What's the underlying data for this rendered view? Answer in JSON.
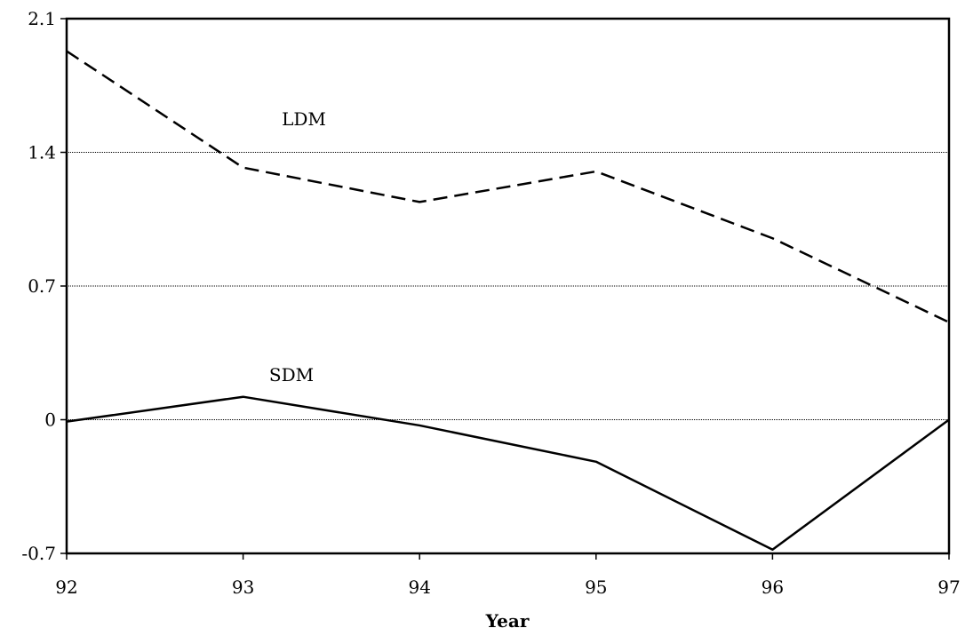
{
  "chart_data": {
    "type": "line",
    "title": "",
    "xlabel": "Year",
    "ylabel": "",
    "x": [
      "92",
      "93",
      "94",
      "95",
      "96",
      "97"
    ],
    "ylim": [
      -0.7,
      2.1
    ],
    "yticks": [
      2.1,
      1.4,
      0.7,
      0,
      -0.7
    ],
    "ytick_labels": [
      "2.1",
      "1.4",
      "0.7",
      "0",
      "-0.7"
    ],
    "grid": true,
    "legend": "none",
    "series": [
      {
        "name": "LDM",
        "style": "dashed",
        "values": [
          1.93,
          1.32,
          1.14,
          1.3,
          0.95,
          0.51
        ]
      },
      {
        "name": "SDM",
        "style": "solid",
        "values": [
          -0.01,
          0.12,
          -0.03,
          -0.22,
          -0.68,
          0.0
        ]
      }
    ],
    "colors": {
      "line": "#000000",
      "grid": "#000000",
      "background": "#ffffff"
    }
  }
}
